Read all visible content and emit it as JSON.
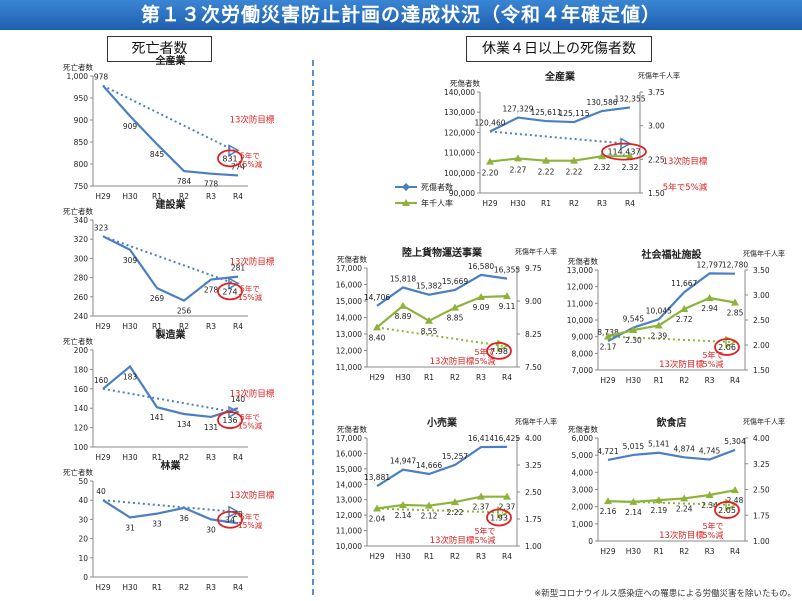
{
  "page": {
    "title": "第１３次労働災害防止計画の達成状況（令和４年確定値）",
    "left_header": "死亡者数",
    "right_header": "休業４日以上の死傷者数",
    "footnote": "※新型コロナウイルス感染症への罹患による労働災害を除いたもの。"
  },
  "colors": {
    "line_blue": "#4a7fc1",
    "line_green": "#8db33a",
    "target_red": "#e02020",
    "banner": "#2a6fc0"
  },
  "chart_data": [
    {
      "type": "line",
      "title": "全産業",
      "ylabel": "死亡者数",
      "ylim": [
        750,
        1000
      ],
      "yticks": [
        750,
        800,
        850,
        900,
        950,
        1000
      ],
      "categories": [
        "H29",
        "H30",
        "R1",
        "R2",
        "R3",
        "R4"
      ],
      "series": [
        {
          "values": [
            978,
            909,
            845,
            784,
            778,
            774
          ]
        }
      ],
      "target": {
        "from": 978,
        "to": 831,
        "label": "13次防目標",
        "note": "5年で\n15%減"
      },
      "tick_labels": {
        "x": [
          "H29",
          "H30",
          "R1",
          "R2",
          "R3",
          "R4"
        ],
        "y": [
          "750",
          "800",
          "850",
          "900",
          "950",
          "1,000"
        ]
      },
      "data_labels": [
        "978",
        "909",
        "845",
        "784",
        "778",
        "774"
      ],
      "target_label": "831"
    },
    {
      "type": "line",
      "title": "建設業",
      "ylabel": "死亡者数",
      "ylim": [
        240,
        340
      ],
      "yticks": [
        240,
        260,
        280,
        300,
        320,
        340
      ],
      "categories": [
        "H29",
        "H30",
        "R1",
        "R2",
        "R3",
        "R4"
      ],
      "series": [
        {
          "values": [
            323,
            309,
            269,
            256,
            278,
            281
          ]
        }
      ],
      "target": {
        "from": 323,
        "to": 274,
        "label": "13次防目標",
        "note": "5年で\n15%減"
      },
      "tick_labels": {
        "x": [
          "H29",
          "H30",
          "R1",
          "R2",
          "R3",
          "R4"
        ],
        "y": [
          "240",
          "260",
          "280",
          "300",
          "320",
          "340"
        ]
      },
      "data_labels": [
        "323",
        "309",
        "269",
        "256",
        "278",
        "281"
      ],
      "target_label": "274"
    },
    {
      "type": "line",
      "title": "製造業",
      "ylabel": "死亡者数",
      "ylim": [
        100,
        200
      ],
      "yticks": [
        100,
        120,
        140,
        160,
        180,
        200
      ],
      "categories": [
        "H29",
        "H30",
        "R1",
        "R2",
        "R3",
        "R4"
      ],
      "series": [
        {
          "values": [
            160,
            183,
            141,
            134,
            131,
            140
          ]
        }
      ],
      "target": {
        "from": 160,
        "to": 136,
        "label": "13次防目標",
        "note": "5年で\n15%減"
      },
      "tick_labels": {
        "x": [
          "H29",
          "H30",
          "R1",
          "R2",
          "R3",
          "R4"
        ],
        "y": [
          "100",
          "120",
          "140",
          "160",
          "180",
          "200"
        ]
      },
      "data_labels": [
        "160",
        "183",
        "141",
        "134",
        "131",
        "140"
      ],
      "target_label": "136"
    },
    {
      "type": "line",
      "title": "林業",
      "ylabel": "死亡者数",
      "ylim": [
        0,
        50
      ],
      "yticks": [
        0,
        10,
        20,
        30,
        40,
        50
      ],
      "categories": [
        "H29",
        "H30",
        "R1",
        "R2",
        "R3",
        "R4"
      ],
      "series": [
        {
          "values": [
            40,
            31,
            33,
            36,
            30,
            28
          ]
        }
      ],
      "target": {
        "from": 40,
        "to": 34,
        "label": "13次防目標",
        "note": "5年で\n15%減"
      },
      "tick_labels": {
        "x": [
          "H29",
          "H30",
          "R1",
          "R2",
          "R3",
          "R4"
        ],
        "y": [
          "0",
          "10",
          "20",
          "30",
          "40",
          "50"
        ]
      },
      "data_labels": [
        "40",
        "31",
        "33",
        "36",
        "30",
        "28"
      ],
      "target_label": "34"
    },
    {
      "type": "line",
      "title": "全産業",
      "ylabel": "死傷者数",
      "y2label": "死傷年千人率",
      "ylim": [
        90000,
        140000
      ],
      "yticks": [
        90000,
        100000,
        110000,
        120000,
        130000,
        140000
      ],
      "y2lim": [
        1.5,
        3.75
      ],
      "y2ticks": [
        1.5,
        2.25,
        3.0,
        3.75
      ],
      "categories": [
        "H29",
        "H30",
        "R1",
        "R2",
        "R3",
        "R4"
      ],
      "series": [
        {
          "name": "死傷者数",
          "values": [
            120460,
            127329,
            125611,
            125115,
            130586,
            132355
          ]
        },
        {
          "name": "年千人率",
          "axis": "right",
          "values": [
            2.2,
            2.27,
            2.22,
            2.22,
            2.32,
            2.32
          ]
        }
      ],
      "target": {
        "from": 120460,
        "to": 114437,
        "label": "13次防目標",
        "note": "5年で5%減"
      },
      "tick_labels": {
        "x": [
          "H29",
          "H30",
          "R1",
          "R2",
          "R3",
          "R4"
        ],
        "y": [
          "90,000",
          "100,000",
          "110,000",
          "120,000",
          "130,000",
          "140,000"
        ],
        "y2": [
          "1.50",
          "2.25",
          "3.00",
          "3.75"
        ]
      },
      "data_labels": [
        "120,460",
        "127,329",
        "125,611",
        "125,115",
        "130,586",
        "132,355"
      ],
      "data_labels2": [
        "2.20",
        "2.27",
        "2.22",
        "2.22",
        "2.32",
        "2.32"
      ],
      "target_label": "114,437",
      "legend": [
        "死傷者数",
        "年千人率"
      ]
    },
    {
      "type": "line",
      "title": "陸上貨物運送事業",
      "ylabel": "死傷者数",
      "y2label": "死傷年千人率",
      "ylim": [
        11000,
        17000
      ],
      "yticks": [
        11000,
        12000,
        13000,
        14000,
        15000,
        16000,
        17000
      ],
      "y2lim": [
        7.5,
        9.75
      ],
      "y2ticks": [
        7.5,
        8.25,
        9.0,
        9.75
      ],
      "categories": [
        "H29",
        "H30",
        "R1",
        "R2",
        "R3",
        "R4"
      ],
      "series": [
        {
          "name": "死傷者数",
          "values": [
            14706,
            15818,
            15382,
            15669,
            16580,
            16355
          ]
        },
        {
          "name": "年千人率",
          "axis": "right",
          "values": [
            8.4,
            8.89,
            8.55,
            8.85,
            9.09,
            9.11
          ]
        }
      ],
      "target": {
        "from": 8.4,
        "to": 7.98,
        "axis": "right",
        "label": "13次防目標",
        "note": "5年で\n5%減"
      },
      "tick_labels": {
        "x": [
          "H29",
          "H30",
          "R1",
          "R2",
          "R3",
          "R4"
        ],
        "y": [
          "11,000",
          "12,000",
          "13,000",
          "14,000",
          "15,000",
          "16,000",
          "17,000"
        ],
        "y2": [
          "7.50",
          "8.25",
          "9.00",
          "9.75"
        ]
      },
      "data_labels": [
        "14,706",
        "15,818",
        "15,382",
        "15,669",
        "16,580",
        "16,355"
      ],
      "data_labels2": [
        "8.40",
        "8.89",
        "8.55",
        "8.85",
        "9.09",
        "9.11"
      ],
      "target_label": "7.98"
    },
    {
      "type": "line",
      "title": "社会福祉施設",
      "ylabel": "死傷者数",
      "y2label": "死傷年千人率",
      "ylim": [
        7000,
        13000
      ],
      "yticks": [
        7000,
        8000,
        9000,
        10000,
        11000,
        12000,
        13000
      ],
      "y2lim": [
        1.5,
        3.5
      ],
      "y2ticks": [
        1.5,
        2.0,
        2.5,
        3.0,
        3.5
      ],
      "categories": [
        "H29",
        "H30",
        "R1",
        "R2",
        "R3",
        "R4"
      ],
      "series": [
        {
          "name": "死傷者数",
          "values": [
            8738,
            9545,
            10045,
            11667,
            12797,
            12780
          ]
        },
        {
          "name": "年千人率",
          "axis": "right",
          "values": [
            2.17,
            2.3,
            2.39,
            2.72,
            2.94,
            2.85
          ]
        }
      ],
      "target": {
        "from": 2.17,
        "to": 2.06,
        "axis": "right",
        "label": "13次防目標",
        "note": "5年で\n5%減"
      },
      "tick_labels": {
        "x": [
          "H29",
          "H30",
          "R1",
          "R2",
          "R3",
          "R4"
        ],
        "y": [
          "7,000",
          "8,000",
          "9,000",
          "10,000",
          "11,000",
          "12,000",
          "13,000"
        ],
        "y2": [
          "1.50",
          "2.00",
          "2.50",
          "3.00",
          "3.50"
        ]
      },
      "data_labels": [
        "8,738",
        "9,545",
        "10,045",
        "11,667",
        "12,797",
        "12,780"
      ],
      "data_labels2": [
        "2.17",
        "2.30",
        "2.39",
        "2.72",
        "2.94",
        "2.85"
      ],
      "target_label": "2.06"
    },
    {
      "type": "line",
      "title": "小売業",
      "ylabel": "死傷者数",
      "y2label": "死傷年千人率",
      "ylim": [
        10000,
        17000
      ],
      "yticks": [
        10000,
        11000,
        12000,
        13000,
        14000,
        15000,
        16000,
        17000
      ],
      "y2lim": [
        1.0,
        4.0
      ],
      "y2ticks": [
        1.0,
        1.75,
        2.5,
        3.25,
        4.0
      ],
      "categories": [
        "H29",
        "H30",
        "R1",
        "R2",
        "R3",
        "R4"
      ],
      "series": [
        {
          "name": "死傷者数",
          "values": [
            13881,
            14947,
            14666,
            15257,
            16414,
            16425
          ]
        },
        {
          "name": "年千人率",
          "axis": "right",
          "values": [
            2.04,
            2.14,
            2.12,
            2.22,
            2.37,
            2.37
          ]
        }
      ],
      "target": {
        "from": 2.04,
        "to": 1.93,
        "axis": "right",
        "label": "13次防目標",
        "note": "5年で\n5%減"
      },
      "tick_labels": {
        "x": [
          "H29",
          "H30",
          "R1",
          "R2",
          "R3",
          "R4"
        ],
        "y": [
          "10,000",
          "11,000",
          "12,000",
          "13,000",
          "14,000",
          "15,000",
          "16,000",
          "17,000"
        ],
        "y2": [
          "1.00",
          "1.75",
          "2.50",
          "3.25",
          "4.00"
        ]
      },
      "data_labels": [
        "13,881",
        "14,947",
        "14,666",
        "15,257",
        "16,414",
        "16,425"
      ],
      "data_labels2": [
        "2.04",
        "2.14",
        "2.12",
        "2.22",
        "2.37",
        "2.37"
      ],
      "target_label": "1.93"
    },
    {
      "type": "line",
      "title": "飲食店",
      "ylabel": "死傷者数",
      "y2label": "死傷年千人率",
      "ylim": [
        0,
        6000
      ],
      "yticks": [
        0,
        1000,
        2000,
        3000,
        4000,
        5000,
        6000
      ],
      "y2lim": [
        1.0,
        4.0
      ],
      "y2ticks": [
        1.0,
        1.75,
        2.5,
        3.25,
        4.0
      ],
      "categories": [
        "H29",
        "H30",
        "R1",
        "R2",
        "R3",
        "R4"
      ],
      "series": [
        {
          "name": "死傷者数",
          "values": [
            4721,
            5015,
            5141,
            4874,
            4745,
            5304
          ]
        },
        {
          "name": "年千人率",
          "axis": "right",
          "values": [
            2.16,
            2.14,
            2.19,
            2.24,
            2.34,
            2.48
          ]
        }
      ],
      "target": {
        "from": 2.16,
        "to": 2.05,
        "axis": "right",
        "label": "13次防目標",
        "note": "5年で\n5%減"
      },
      "tick_labels": {
        "x": [
          "H29",
          "H30",
          "R1",
          "R2",
          "R3",
          "R4"
        ],
        "y": [
          "0",
          "1,000",
          "2,000",
          "3,000",
          "4,000",
          "5,000",
          "6,000"
        ],
        "y2": [
          "1.00",
          "1.75",
          "2.50",
          "3.25",
          "4.00"
        ]
      },
      "data_labels": [
        "4,721",
        "5,015",
        "5,141",
        "4,874",
        "4,745",
        "5,304"
      ],
      "data_labels2": [
        "2.16",
        "2.14",
        "2.19",
        "2.24",
        "2.34",
        "2.48"
      ],
      "target_label": "2.05"
    }
  ]
}
